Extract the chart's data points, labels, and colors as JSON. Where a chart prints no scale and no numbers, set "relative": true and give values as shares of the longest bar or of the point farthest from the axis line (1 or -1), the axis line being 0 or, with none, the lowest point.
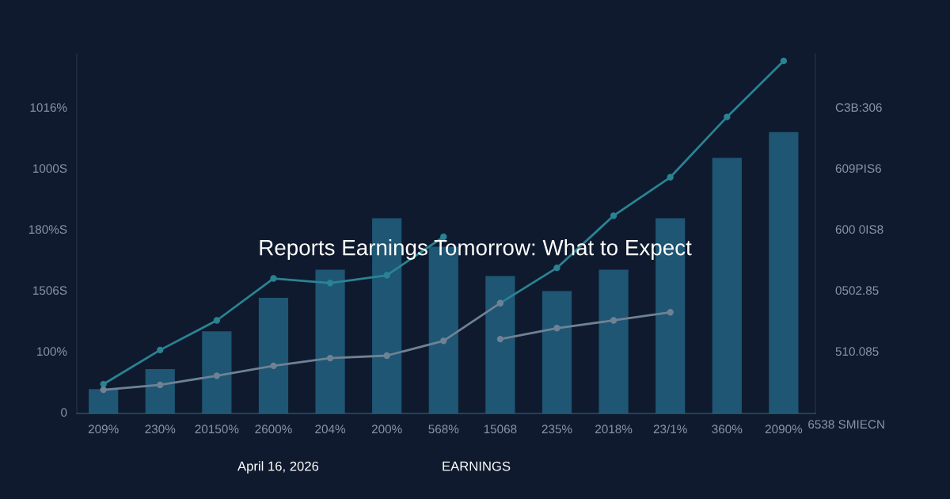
{
  "chart_data": {
    "type": "bar",
    "title": "Reports Earnings Tomorrow: What to Expect",
    "relative": true,
    "categories": [
      "209%",
      "230%",
      "20150%",
      "2600%",
      "204%",
      "200%",
      "568%",
      "15068",
      "235%",
      "2018%",
      "23/1%",
      "360%",
      "2090%"
    ],
    "series": [
      {
        "color": "#1e5674",
        "values": [
          0.069,
          0.126,
          0.233,
          0.328,
          0.408,
          0.554,
          0.473,
          0.39,
          0.347,
          0.408,
          0.554,
          0.725,
          0.798
        ]
      },
      {
        "type": "line",
        "color": "#2a8393",
        "values": [
          0.083,
          0.18,
          0.264,
          0.383,
          0.37,
          0.392,
          0.501,
          null,
          null,
          null,
          null,
          null,
          null
        ]
      },
      {
        "type": "line",
        "color": "#2a8393",
        "values": [
          null,
          null,
          null,
          null,
          null,
          null,
          null,
          0.313,
          0.413,
          0.561,
          0.67,
          0.841,
          1
        ]
      },
      {
        "type": "line",
        "color": "#6f8294",
        "values": [
          0.067,
          0.081,
          0.107,
          0.135,
          0.157,
          0.164,
          0.206,
          0.313,
          null,
          null,
          null,
          null,
          null
        ]
      },
      {
        "type": "line",
        "color": "#6f8294",
        "values": [
          null,
          null,
          null,
          null,
          null,
          null,
          null,
          0.211,
          0.242,
          0.264,
          0.287,
          null,
          null
        ]
      }
    ],
    "legend": false,
    "marker": "circle",
    "annotations": [
      "0",
      "100%",
      "1506S",
      "180%S",
      "1000S",
      "1016%",
      "510.085",
      "0502.85",
      "600 0IS8",
      "609PIS6",
      "C3B:306",
      "6538 SMIECN",
      "April 16, 2026",
      "EARNINGS"
    ]
  }
}
